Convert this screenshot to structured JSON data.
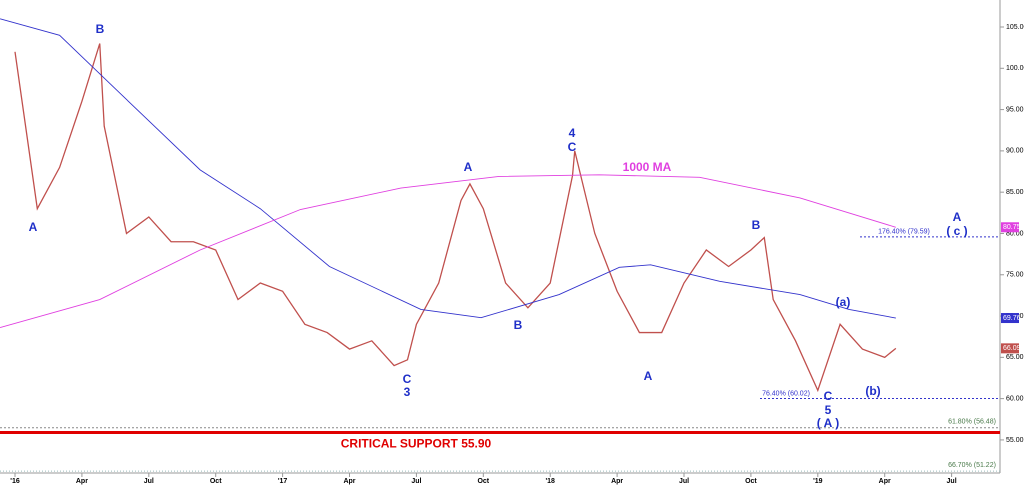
{
  "chart_data": {
    "type": "line",
    "xlim": [
      -0.673,
      44.17
    ],
    "ylim": [
      49.3,
      108.27
    ],
    "xticks": [
      {
        "value": 0,
        "label": "'16"
      },
      {
        "value": 3,
        "label": "Apr"
      },
      {
        "value": 6,
        "label": "Jul"
      },
      {
        "value": 9,
        "label": "Oct"
      },
      {
        "value": 12,
        "label": "'17"
      },
      {
        "value": 15,
        "label": "Apr"
      },
      {
        "value": 18,
        "label": "Jul"
      },
      {
        "value": 21,
        "label": "Oct"
      },
      {
        "value": 24,
        "label": "'18"
      },
      {
        "value": 27,
        "label": "Apr"
      },
      {
        "value": 30,
        "label": "Jul"
      },
      {
        "value": 33,
        "label": "Oct"
      },
      {
        "value": 36,
        "label": "'19"
      },
      {
        "value": 39,
        "label": "Apr"
      },
      {
        "value": 42,
        "label": "Jul"
      }
    ],
    "yticks": [
      {
        "value": 105,
        "label": "105.00"
      },
      {
        "value": 100,
        "label": "100.00"
      },
      {
        "value": 95,
        "label": "95.00"
      },
      {
        "value": 90,
        "label": "90.00"
      },
      {
        "value": 85,
        "label": "85.00"
      },
      {
        "value": 80,
        "label": "80.00"
      },
      {
        "value": 75,
        "label": "75.00"
      },
      {
        "value": 70,
        "label": "70.00"
      },
      {
        "value": 65,
        "label": "65.00"
      },
      {
        "value": 60,
        "label": "60.00"
      },
      {
        "value": 55,
        "label": "55.00"
      }
    ],
    "series": [
      {
        "color": "#c0504d",
        "x": [
          0,
          1,
          2,
          3,
          3.8,
          4,
          5,
          6,
          7,
          8,
          9,
          10,
          11,
          12,
          13,
          14,
          15,
          16,
          17,
          17.6,
          18,
          19,
          20,
          20.4,
          21,
          22,
          23,
          24,
          25,
          25.1,
          26,
          27,
          28,
          29,
          30,
          31,
          32,
          33,
          33.6,
          34,
          35,
          36,
          37,
          38,
          39,
          39.5
        ],
        "values": [
          102,
          83,
          88,
          96,
          103,
          93,
          80,
          82,
          79,
          79,
          78,
          72,
          74,
          73,
          69,
          68,
          66,
          67,
          64,
          64.7,
          69,
          74,
          84,
          86,
          83,
          74,
          71,
          74,
          87,
          90,
          80,
          73,
          68,
          68,
          74,
          78,
          76,
          78,
          79.5,
          72,
          67,
          61,
          69,
          66,
          65,
          66.09
        ]
      },
      {
        "color": "#3333cc",
        "x": [
          -0.67,
          2.0,
          4.7,
          8.3,
          11,
          14.1,
          18.2,
          20.9,
          24.4,
          27.1,
          28.5,
          31.6,
          35.2,
          37.4,
          39.5
        ],
        "values": [
          106,
          104,
          97,
          87.7,
          83,
          76,
          70.8,
          69.8,
          72.6,
          75.9,
          76.2,
          74.2,
          72.6,
          70.8,
          69.76
        ]
      },
      {
        "name": "1000 MA",
        "color": "#e040e0",
        "x": [
          -0.67,
          3.8,
          8.3,
          12.8,
          17.3,
          21.7,
          26.2,
          30.7,
          35.2,
          39.5
        ],
        "values": [
          68.6,
          72,
          78,
          82.9,
          85.5,
          86.9,
          87.1,
          86.8,
          84.3,
          80.75
        ]
      }
    ],
    "annotations": [
      "A",
      "B",
      "A",
      "4",
      "C",
      "B",
      "C",
      "3",
      "A",
      "B",
      "(a)",
      "(b)",
      "C",
      "5",
      "( A )",
      "A",
      "( c )"
    ],
    "levels": [
      {
        "label": "176.40% (79.59)",
        "value": 79.59
      },
      {
        "label": "76.40% (60.02)",
        "value": 60.02
      },
      {
        "label": "61.80% (56.48)",
        "value": 56.48
      },
      {
        "label": "CRITICAL SUPPORT 55.90",
        "value": 55.9
      },
      {
        "label": "66.70% (51.22)",
        "value": 51.22
      }
    ]
  }
}
